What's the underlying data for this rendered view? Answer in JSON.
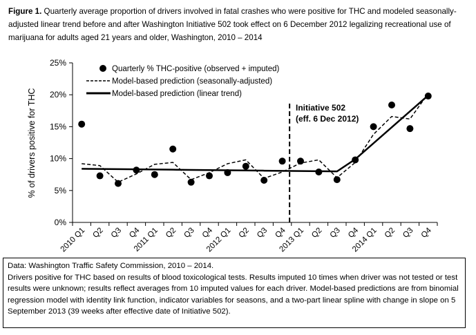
{
  "caption": {
    "label": "Figure 1.",
    "text": " Quarterly average proportion of drivers involved in fatal crashes who were positive for THC and modeled seasonally-adjusted linear trend before and after Washington Initiative 502 took effect on 6 December 2012 legalizing recreational use of marijuana for adults aged 21 years and older, Washington, 2010 – 2014"
  },
  "chart_data": {
    "type": "line",
    "ylabel": "% of drivers  positive for THC",
    "ylim": [
      0,
      25
    ],
    "yticks": [
      "0%",
      "5%",
      "10%",
      "15%",
      "20%",
      "25%"
    ],
    "categories": [
      "2010 Q1",
      "Q2",
      "Q3",
      "Q4",
      "2011 Q1",
      "Q2",
      "Q3",
      "Q4",
      "2012 Q1",
      "Q2",
      "Q3",
      "Q4",
      "2013 Q1",
      "Q2",
      "Q3",
      "Q4",
      "2014 Q1",
      "Q2",
      "Q3",
      "Q4"
    ],
    "series": [
      {
        "name": "Quarterly % THC-positive (observed + imputed)",
        "style": "points",
        "values": [
          15.4,
          7.3,
          6.1,
          8.2,
          7.5,
          11.5,
          6.3,
          7.3,
          7.8,
          8.8,
          6.6,
          9.6,
          9.6,
          7.9,
          6.7,
          9.8,
          15.0,
          18.4,
          14.7,
          19.8
        ]
      },
      {
        "name": "Model-based prediction (seasonally-adjusted)",
        "style": "dashed",
        "values": [
          9.2,
          8.9,
          6.3,
          7.6,
          9.1,
          9.4,
          6.7,
          7.8,
          9.2,
          9.8,
          6.9,
          7.9,
          9.3,
          9.8,
          7.0,
          9.4,
          13.8,
          16.6,
          16.2,
          20.2
        ]
      },
      {
        "name": "Model-based prediction (linear trend)",
        "style": "solid",
        "values": [
          8.4,
          8.38,
          8.35,
          8.32,
          8.29,
          8.26,
          8.23,
          8.2,
          8.17,
          8.14,
          8.11,
          8.08,
          8.05,
          8.02,
          7.99,
          9.9,
          12.4,
          14.9,
          17.4,
          19.9
        ]
      }
    ],
    "annotation": {
      "line1": "Initiative 502",
      "line2": "(eff. 6 Dec 2012)",
      "position_category": "2012 Q4"
    },
    "legend_position": "top-left"
  },
  "notes": [
    "Data: Washington Traffic Safety Commission, 2010 – 2014.",
    "Drivers positive for THC based on results of blood toxicological tests. Results imputed 10 times when driver was not tested or test results were unknown; results reflect averages from 10 imputed values for each driver. Model-based predictions are from binomial regression model with identity link function, indicator variables for seasons, and a two-part linear spline with change in slope on 5 September 2013 (39 weeks after effective date of Initiative 502)."
  ]
}
